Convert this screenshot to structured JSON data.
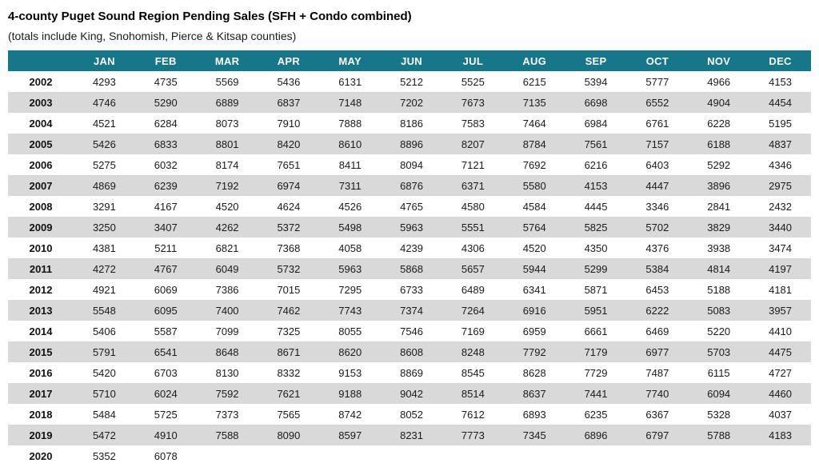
{
  "title": "4-county Puget Sound Region Pending Sales (SFH + Condo combined)",
  "subtitle": "(totals include King, Snohomish, Pierce & Kitsap counties)",
  "colors": {
    "header_bg": "#16768a",
    "header_text": "#ffffff",
    "row_alt_bg": "#d9d9d9",
    "row_bg": "#ffffff"
  },
  "chart_data": {
    "type": "table",
    "title": "4-county Puget Sound Region Pending Sales (SFH + Condo combined)",
    "subtitle": "(totals include King, Snohomish, Pierce & Kitsap counties)",
    "corner_label": "",
    "columns": [
      "JAN",
      "FEB",
      "MAR",
      "APR",
      "MAY",
      "JUN",
      "JUL",
      "AUG",
      "SEP",
      "OCT",
      "NOV",
      "DEC"
    ],
    "rows": [
      {
        "year": "2002",
        "values": [
          4293,
          4735,
          5569,
          5436,
          6131,
          5212,
          5525,
          6215,
          5394,
          5777,
          4966,
          4153
        ]
      },
      {
        "year": "2003",
        "values": [
          4746,
          5290,
          6889,
          6837,
          7148,
          7202,
          7673,
          7135,
          6698,
          6552,
          4904,
          4454
        ]
      },
      {
        "year": "2004",
        "values": [
          4521,
          6284,
          8073,
          7910,
          7888,
          8186,
          7583,
          7464,
          6984,
          6761,
          6228,
          5195
        ]
      },
      {
        "year": "2005",
        "values": [
          5426,
          6833,
          8801,
          8420,
          8610,
          8896,
          8207,
          8784,
          7561,
          7157,
          6188,
          4837
        ]
      },
      {
        "year": "2006",
        "values": [
          5275,
          6032,
          8174,
          7651,
          8411,
          8094,
          7121,
          7692,
          6216,
          6403,
          5292,
          4346
        ]
      },
      {
        "year": "2007",
        "values": [
          4869,
          6239,
          7192,
          6974,
          7311,
          6876,
          6371,
          5580,
          4153,
          4447,
          3896,
          2975
        ]
      },
      {
        "year": "2008",
        "values": [
          3291,
          4167,
          4520,
          4624,
          4526,
          4765,
          4580,
          4584,
          4445,
          3346,
          2841,
          2432
        ]
      },
      {
        "year": "2009",
        "values": [
          3250,
          3407,
          4262,
          5372,
          5498,
          5963,
          5551,
          5764,
          5825,
          5702,
          3829,
          3440
        ]
      },
      {
        "year": "2010",
        "values": [
          4381,
          5211,
          6821,
          7368,
          4058,
          4239,
          4306,
          4520,
          4350,
          4376,
          3938,
          3474
        ]
      },
      {
        "year": "2011",
        "values": [
          4272,
          4767,
          6049,
          5732,
          5963,
          5868,
          5657,
          5944,
          5299,
          5384,
          4814,
          4197
        ]
      },
      {
        "year": "2012",
        "values": [
          4921,
          6069,
          7386,
          7015,
          7295,
          6733,
          6489,
          6341,
          5871,
          6453,
          5188,
          4181
        ]
      },
      {
        "year": "2013",
        "values": [
          5548,
          6095,
          7400,
          7462,
          7743,
          7374,
          7264,
          6916,
          5951,
          6222,
          5083,
          3957
        ]
      },
      {
        "year": "2014",
        "values": [
          5406,
          5587,
          7099,
          7325,
          8055,
          7546,
          7169,
          6959,
          6661,
          6469,
          5220,
          4410
        ]
      },
      {
        "year": "2015",
        "values": [
          5791,
          6541,
          8648,
          8671,
          8620,
          8608,
          8248,
          7792,
          7179,
          6977,
          5703,
          4475
        ]
      },
      {
        "year": "2016",
        "values": [
          5420,
          6703,
          8130,
          8332,
          9153,
          8869,
          8545,
          8628,
          7729,
          7487,
          6115,
          4727
        ]
      },
      {
        "year": "2017",
        "values": [
          5710,
          6024,
          7592,
          7621,
          9188,
          9042,
          8514,
          8637,
          7441,
          7740,
          6094,
          4460
        ]
      },
      {
        "year": "2018",
        "values": [
          5484,
          5725,
          7373,
          7565,
          8742,
          8052,
          7612,
          6893,
          6235,
          6367,
          5328,
          4037
        ]
      },
      {
        "year": "2019",
        "values": [
          5472,
          4910,
          7588,
          8090,
          8597,
          8231,
          7773,
          7345,
          6896,
          6797,
          5788,
          4183
        ]
      },
      {
        "year": "2020",
        "values": [
          5352,
          6078
        ]
      }
    ]
  }
}
